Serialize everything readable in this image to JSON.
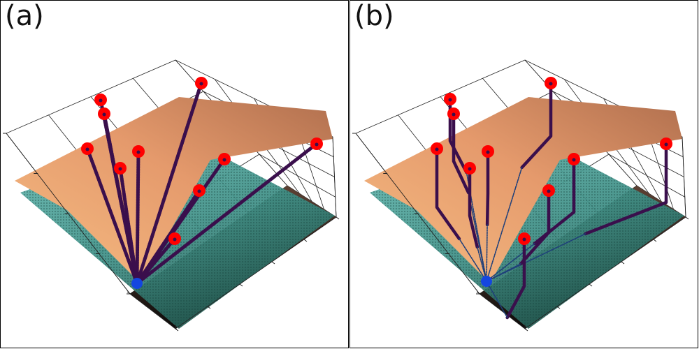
{
  "panels": [
    {
      "label": "(a)",
      "trajectory_style": "direct"
    },
    {
      "label": "(b)",
      "trajectory_style": "axis-aligned"
    }
  ],
  "colors": {
    "upper_surface_light": "#f6bd83",
    "upper_surface_dark": "#b06f4e",
    "lower_surface_light": "#67bcb4",
    "lower_surface_dark": "#23584f",
    "trajectory": "#3a0f4c",
    "start_marker": "#ff0000",
    "goal_marker": "#1446e0",
    "axes": "#222222"
  }
}
